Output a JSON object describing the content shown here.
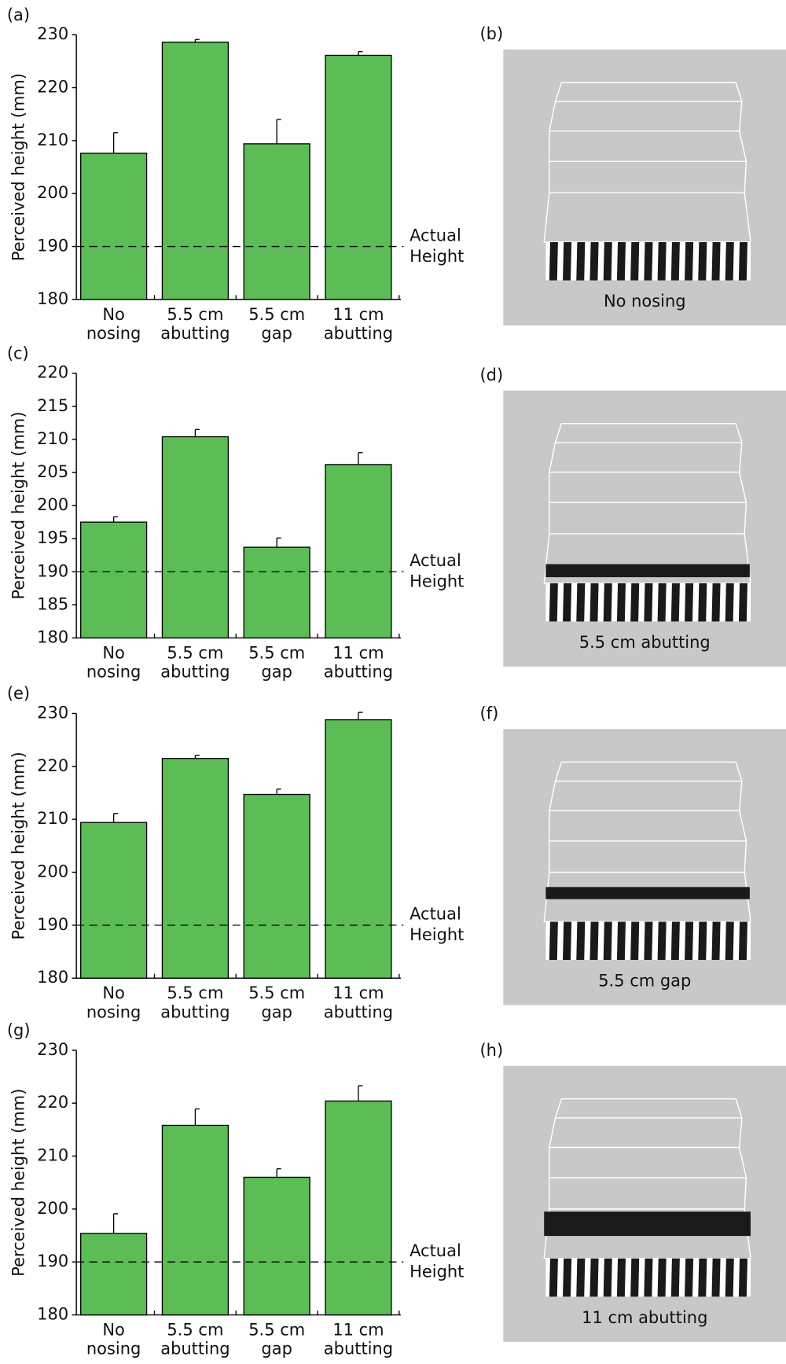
{
  "chart_data": [
    {
      "type": "bar",
      "label": "(a)",
      "ylabel": "Perceived height (mm)",
      "categories": [
        "No nosing",
        "5.5 cm abutting",
        "5.5 cm gap",
        "11 cm abutting"
      ],
      "series": [
        {
          "color": "#5cbd56",
          "values": [
            207.6,
            228.6,
            209.4,
            226.1
          ],
          "errors": [
            3.9,
            0.5,
            4.6,
            0.7
          ]
        }
      ],
      "ylim": [
        180,
        230
      ],
      "yticks": [
        180,
        190,
        200,
        210,
        220,
        230
      ],
      "reference": {
        "value": 190,
        "label": "Actual Height"
      }
    },
    {
      "type": "bar",
      "label": "(c)",
      "ylabel": "Perceived height (mm)",
      "categories": [
        "No nosing",
        "5.5 cm abutting",
        "5.5 cm gap",
        "11 cm abutting"
      ],
      "series": [
        {
          "color": "#5cbd56",
          "values": [
            197.5,
            210.4,
            193.7,
            206.2
          ],
          "errors": [
            0.8,
            1.1,
            1.4,
            1.8
          ]
        }
      ],
      "ylim": [
        180,
        220
      ],
      "yticks": [
        180,
        185,
        190,
        195,
        200,
        205,
        210,
        215,
        220
      ],
      "reference": {
        "value": 190,
        "label": "Actual Height"
      }
    },
    {
      "type": "bar",
      "label": "(e)",
      "ylabel": "Perceived height (mm)",
      "categories": [
        "No nosing",
        "5.5 cm abutting",
        "5.5 cm gap",
        "11 cm abutting"
      ],
      "series": [
        {
          "color": "#5cbd56",
          "values": [
            209.4,
            221.5,
            214.7,
            228.8
          ],
          "errors": [
            1.7,
            0.6,
            1.0,
            1.4
          ]
        }
      ],
      "ylim": [
        180,
        230
      ],
      "yticks": [
        180,
        190,
        200,
        210,
        220,
        230
      ],
      "reference": {
        "value": 190,
        "label": "Actual Height"
      }
    },
    {
      "type": "bar",
      "label": "(g)",
      "ylabel": "Perceived height (mm)",
      "categories": [
        "No nosing",
        "5.5 cm abutting",
        "5.5 cm gap",
        "11 cm abutting"
      ],
      "series": [
        {
          "color": "#5cbd56",
          "values": [
            195.4,
            215.8,
            206.0,
            220.4
          ],
          "errors": [
            3.7,
            3.1,
            1.6,
            2.9
          ]
        }
      ],
      "ylim": [
        180,
        230
      ],
      "yticks": [
        180,
        190,
        200,
        210,
        220,
        230
      ],
      "reference": {
        "value": 190,
        "label": "Actual Height"
      }
    }
  ],
  "diagrams": [
    {
      "label": "(b)",
      "caption": "No nosing"
    },
    {
      "label": "(d)",
      "caption": "5.5 cm abutting"
    },
    {
      "label": "(f)",
      "caption": "5.5 cm gap"
    },
    {
      "label": "(h)",
      "caption": "11 cm abutting"
    }
  ]
}
